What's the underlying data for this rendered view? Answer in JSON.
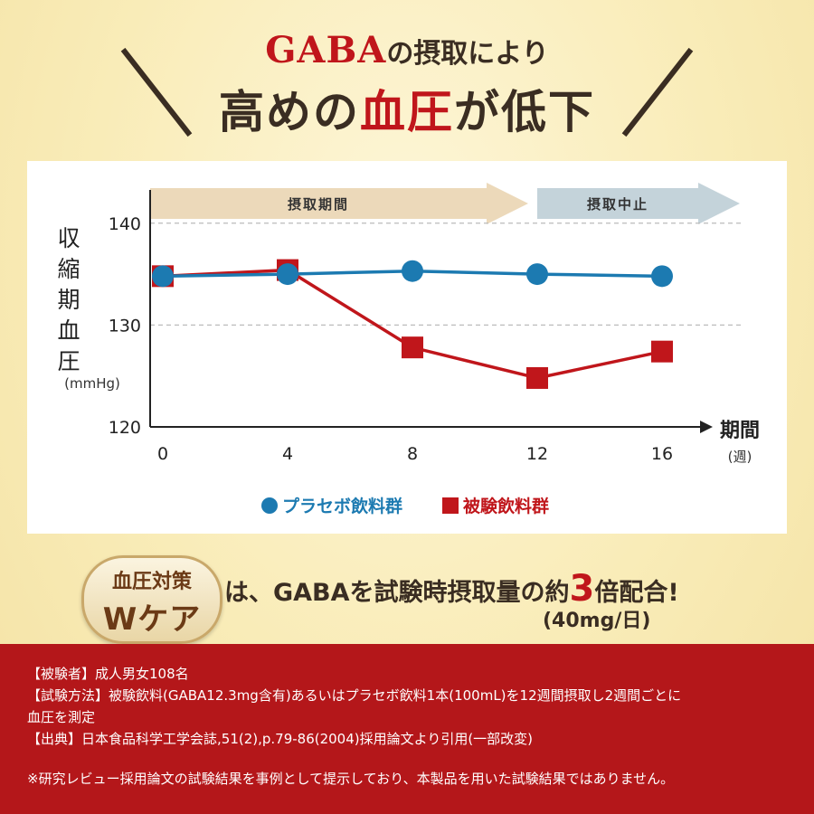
{
  "headline": {
    "line1_prefix": "GABA",
    "line1_rest": "の摂取により",
    "line2_black1": "高めの",
    "line2_red": "血圧",
    "line2_black2": "が低下"
  },
  "chart_data": {
    "type": "line",
    "x": [
      0,
      4,
      8,
      12,
      16
    ],
    "y_ticks": [
      140,
      130,
      120
    ],
    "x_ticks": [
      "0",
      "4",
      "8",
      "12",
      "16"
    ],
    "ylabel": "収縮期血圧",
    "ylabel_unit": "(mmHg)",
    "xlabel": "期間",
    "xlabel_unit": "(週)",
    "ylim": [
      120,
      143
    ],
    "grid": "horizontal dashed",
    "periods": [
      {
        "label": "摂取期間",
        "from": 0,
        "to": 12,
        "color": "#ecd9ba"
      },
      {
        "label": "摂取中止",
        "from": 12,
        "to": 16,
        "color": "#c4d3da"
      }
    ],
    "series": [
      {
        "name": "プラセボ飲料群",
        "marker": "circle",
        "color": "#1c7ab1",
        "values": [
          134.8,
          135.0,
          135.3,
          135.0,
          134.8
        ]
      },
      {
        "name": "被験飲料群",
        "marker": "square",
        "color": "#c0161b",
        "values": [
          134.8,
          135.4,
          127.8,
          124.8,
          127.4
        ]
      }
    ],
    "legend_position": "bottom"
  },
  "promo": {
    "badge_top": "血圧対策",
    "badge_bottom": "Wケア",
    "claim_prefix": "は、GABAを試験時摂取量の約",
    "claim_number": "3",
    "claim_suffix": "倍配合!",
    "claim_sub": "(40mg/日)"
  },
  "footer": {
    "line1": "【被験者】成人男女108名",
    "line2": "【試験方法】被験飲料(GABA12.3mg含有)あるいはプラセボ飲料1本(100mL)を12週間摂取し2週間ごとに",
    "line3": "血圧を測定",
    "line4": "【出典】日本食品科学工学会誌,51(2),p.79-86(2004)採用論文より引用(一部改変)",
    "note": "※研究レビュー採用論文の試験結果を事例として提示しており、本製品を用いた試験結果ではありません。"
  }
}
